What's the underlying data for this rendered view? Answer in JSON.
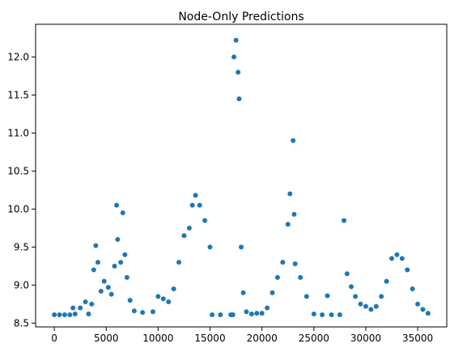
{
  "chart_data": {
    "type": "scatter",
    "title": "Node-Only Predictions",
    "xlabel": "",
    "ylabel": "",
    "xlim": [
      -1800,
      37800
    ],
    "ylim": [
      8.45,
      12.43
    ],
    "x_ticks": [
      0,
      5000,
      10000,
      15000,
      20000,
      25000,
      30000,
      35000
    ],
    "x_tick_labels": [
      "0",
      "5000",
      "10000",
      "15000",
      "20000",
      "25000",
      "30000",
      "35000"
    ],
    "y_ticks": [
      8.5,
      9.0,
      9.5,
      10.0,
      10.5,
      11.0,
      11.5,
      12.0
    ],
    "y_tick_labels": [
      "8.5",
      "9.0",
      "9.5",
      "10.0",
      "10.5",
      "11.0",
      "11.5",
      "12.0"
    ],
    "grid": false,
    "legend": "none",
    "marker_color": "#1f77b4",
    "series": [
      {
        "points": [
          [
            0,
            8.61
          ],
          [
            500,
            8.61
          ],
          [
            1000,
            8.61
          ],
          [
            1500,
            8.61
          ],
          [
            1800,
            8.7
          ],
          [
            2000,
            8.62
          ],
          [
            2500,
            8.7
          ],
          [
            3000,
            8.78
          ],
          [
            3300,
            8.62
          ],
          [
            3600,
            8.75
          ],
          [
            3800,
            9.2
          ],
          [
            4000,
            9.52
          ],
          [
            4200,
            9.3
          ],
          [
            4500,
            8.92
          ],
          [
            4800,
            9.05
          ],
          [
            5200,
            8.97
          ],
          [
            5500,
            8.88
          ],
          [
            5800,
            9.25
          ],
          [
            6000,
            10.05
          ],
          [
            6100,
            9.6
          ],
          [
            6400,
            9.3
          ],
          [
            6600,
            9.95
          ],
          [
            6800,
            9.4
          ],
          [
            7000,
            9.1
          ],
          [
            7300,
            8.8
          ],
          [
            7700,
            8.66
          ],
          [
            8500,
            8.64
          ],
          [
            9500,
            8.65
          ],
          [
            10000,
            8.85
          ],
          [
            10500,
            8.82
          ],
          [
            11000,
            8.78
          ],
          [
            11500,
            8.95
          ],
          [
            12000,
            9.3
          ],
          [
            12500,
            9.65
          ],
          [
            13000,
            9.75
          ],
          [
            13300,
            10.05
          ],
          [
            13600,
            10.18
          ],
          [
            14000,
            10.05
          ],
          [
            14500,
            9.85
          ],
          [
            15000,
            9.5
          ],
          [
            15200,
            8.61
          ],
          [
            16000,
            8.61
          ],
          [
            17000,
            8.61
          ],
          [
            17200,
            8.61
          ],
          [
            17300,
            12.0
          ],
          [
            17500,
            12.22
          ],
          [
            17700,
            11.8
          ],
          [
            17800,
            11.45
          ],
          [
            18000,
            9.5
          ],
          [
            18200,
            8.9
          ],
          [
            18500,
            8.65
          ],
          [
            19000,
            8.62
          ],
          [
            19500,
            8.63
          ],
          [
            20000,
            8.63
          ],
          [
            20500,
            8.7
          ],
          [
            21000,
            8.9
          ],
          [
            21500,
            9.1
          ],
          [
            22000,
            9.3
          ],
          [
            22500,
            9.8
          ],
          [
            22700,
            10.2
          ],
          [
            23000,
            10.9
          ],
          [
            23100,
            9.93
          ],
          [
            23200,
            9.28
          ],
          [
            23700,
            9.1
          ],
          [
            24300,
            8.85
          ],
          [
            25000,
            8.62
          ],
          [
            25800,
            8.61
          ],
          [
            26300,
            8.86
          ],
          [
            26700,
            8.61
          ],
          [
            27500,
            8.61
          ],
          [
            27900,
            9.85
          ],
          [
            28200,
            9.15
          ],
          [
            28600,
            8.98
          ],
          [
            29000,
            8.85
          ],
          [
            29500,
            8.75
          ],
          [
            30000,
            8.72
          ],
          [
            30500,
            8.68
          ],
          [
            31000,
            8.72
          ],
          [
            31500,
            8.85
          ],
          [
            32000,
            9.05
          ],
          [
            32500,
            9.35
          ],
          [
            33000,
            9.4
          ],
          [
            33500,
            9.35
          ],
          [
            34000,
            9.2
          ],
          [
            34500,
            8.95
          ],
          [
            35000,
            8.75
          ],
          [
            35500,
            8.68
          ],
          [
            36000,
            8.63
          ]
        ]
      }
    ]
  }
}
